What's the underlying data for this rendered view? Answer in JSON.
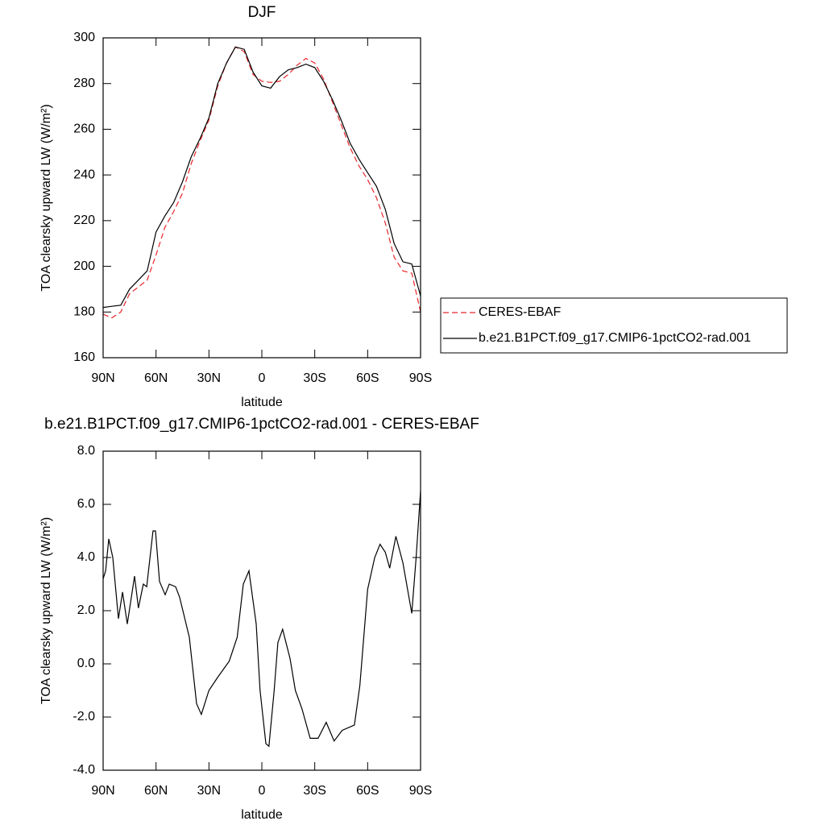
{
  "chart_data": [
    {
      "type": "line",
      "title": "DJF",
      "xlabel": "latitude",
      "ylabel": "TOA clearsky upward LW (W/m²)",
      "x": [
        90,
        85,
        80,
        75,
        70,
        65,
        60,
        55,
        50,
        45,
        40,
        35,
        30,
        25,
        20,
        15,
        10,
        5,
        0,
        -5,
        -10,
        -15,
        -20,
        -25,
        -30,
        -35,
        -40,
        -45,
        -50,
        -55,
        -60,
        -65,
        -70,
        -75,
        -80,
        -85,
        -90
      ],
      "series": [
        {
          "name": "CERES-EBAF",
          "color": "#e8262a",
          "dash": true,
          "values": [
            179,
            177.5,
            180,
            188,
            191,
            194,
            205,
            217,
            224,
            232,
            245,
            255,
            264,
            279,
            289,
            296,
            294,
            284,
            281,
            280.5,
            281,
            284,
            288,
            291,
            289,
            282,
            272,
            262,
            252,
            244,
            238,
            230,
            219,
            204,
            198,
            197,
            180
          ]
        },
        {
          "name": "b.e21.B1PCT.f09_g17.CMIP6-1pctCO2-rad.001",
          "color": "#000000",
          "dash": false,
          "values": [
            182,
            182.5,
            183,
            190,
            194,
            198,
            215,
            222,
            228,
            237,
            248,
            256,
            265,
            280,
            289,
            296,
            295,
            285,
            279,
            278,
            283,
            286,
            287,
            288.5,
            287,
            281,
            273,
            264,
            254,
            247,
            241,
            235,
            225,
            210,
            202,
            201,
            187
          ]
        }
      ],
      "xlim": [
        90,
        -90
      ],
      "xticks": [
        {
          "value": 90,
          "label": "90N"
        },
        {
          "value": 60,
          "label": "60N"
        },
        {
          "value": 30,
          "label": "30N"
        },
        0,
        {
          "value": -30,
          "label": "30S"
        },
        {
          "value": -60,
          "label": "60S"
        },
        {
          "value": -90,
          "label": "90S"
        }
      ],
      "ylim": [
        160,
        300
      ],
      "yticks": [
        160,
        180,
        200,
        220,
        240,
        260,
        280,
        300
      ],
      "legend": "right"
    },
    {
      "type": "line",
      "title": "b.e21.B1PCT.f09_g17.CMIP6-1pctCO2-rad.001 - CERES-EBAF",
      "xlabel": "latitude",
      "ylabel": "TOA clearsky upward LW (W/m²)",
      "x": [
        90,
        88.6,
        86.8,
        84.5,
        81.3,
        79,
        76.3,
        72.2,
        70,
        67.2,
        65.3,
        61.7,
        60.3,
        58,
        54.8,
        52.5,
        48.9,
        46.6,
        41.1,
        37,
        34.3,
        30,
        25,
        18.5,
        14,
        10.5,
        7.3,
        3.2,
        1,
        -2.3,
        -4,
        -7,
        -9.1,
        -11.8,
        -16,
        -19,
        -22.8,
        -27.4,
        -31.9,
        -36.5,
        -41,
        -45.6,
        -52.5,
        -55.6,
        -60,
        -64,
        -67,
        -70,
        -72.5,
        -76,
        -80,
        -85,
        -87.5,
        -90
      ],
      "series": [
        {
          "color": "#000000",
          "values": [
            3.2,
            3.5,
            4.7,
            4.0,
            1.7,
            2.7,
            1.5,
            3.3,
            2.1,
            3.0,
            2.9,
            5.0,
            5.0,
            3.1,
            2.6,
            3.0,
            2.9,
            2.5,
            1.0,
            -1.5,
            -1.9,
            -1.0,
            -0.5,
            0.1,
            1.0,
            3.0,
            3.5,
            1.5,
            -1.0,
            -3.0,
            -3.1,
            -1.0,
            0.8,
            1.3,
            0.2,
            -1.0,
            -1.7,
            -2.8,
            -2.8,
            -2.2,
            -2.9,
            -2.5,
            -2.3,
            -0.8,
            2.8,
            4.0,
            4.5,
            4.2,
            3.6,
            4.8,
            3.8,
            1.9,
            4.0,
            6.5
          ]
        }
      ],
      "xlim": [
        90,
        -90
      ],
      "xticks": [
        {
          "value": 90,
          "label": "90N"
        },
        {
          "value": 60,
          "label": "60N"
        },
        {
          "value": 30,
          "label": "30N"
        },
        0,
        {
          "value": -30,
          "label": "30S"
        },
        {
          "value": -60,
          "label": "60S"
        },
        {
          "value": -90,
          "label": "90S"
        }
      ],
      "ylim": [
        -4,
        8
      ],
      "yticks": [
        {
          "value": -4,
          "label": "-4.0"
        },
        {
          "value": -2,
          "label": "-2.0"
        },
        {
          "value": 0,
          "label": "0.0"
        },
        {
          "value": 2,
          "label": "2.0"
        },
        {
          "value": 4,
          "label": "4.0"
        },
        {
          "value": 6,
          "label": "6.0"
        },
        {
          "value": 8,
          "label": "8.0"
        }
      ]
    }
  ]
}
